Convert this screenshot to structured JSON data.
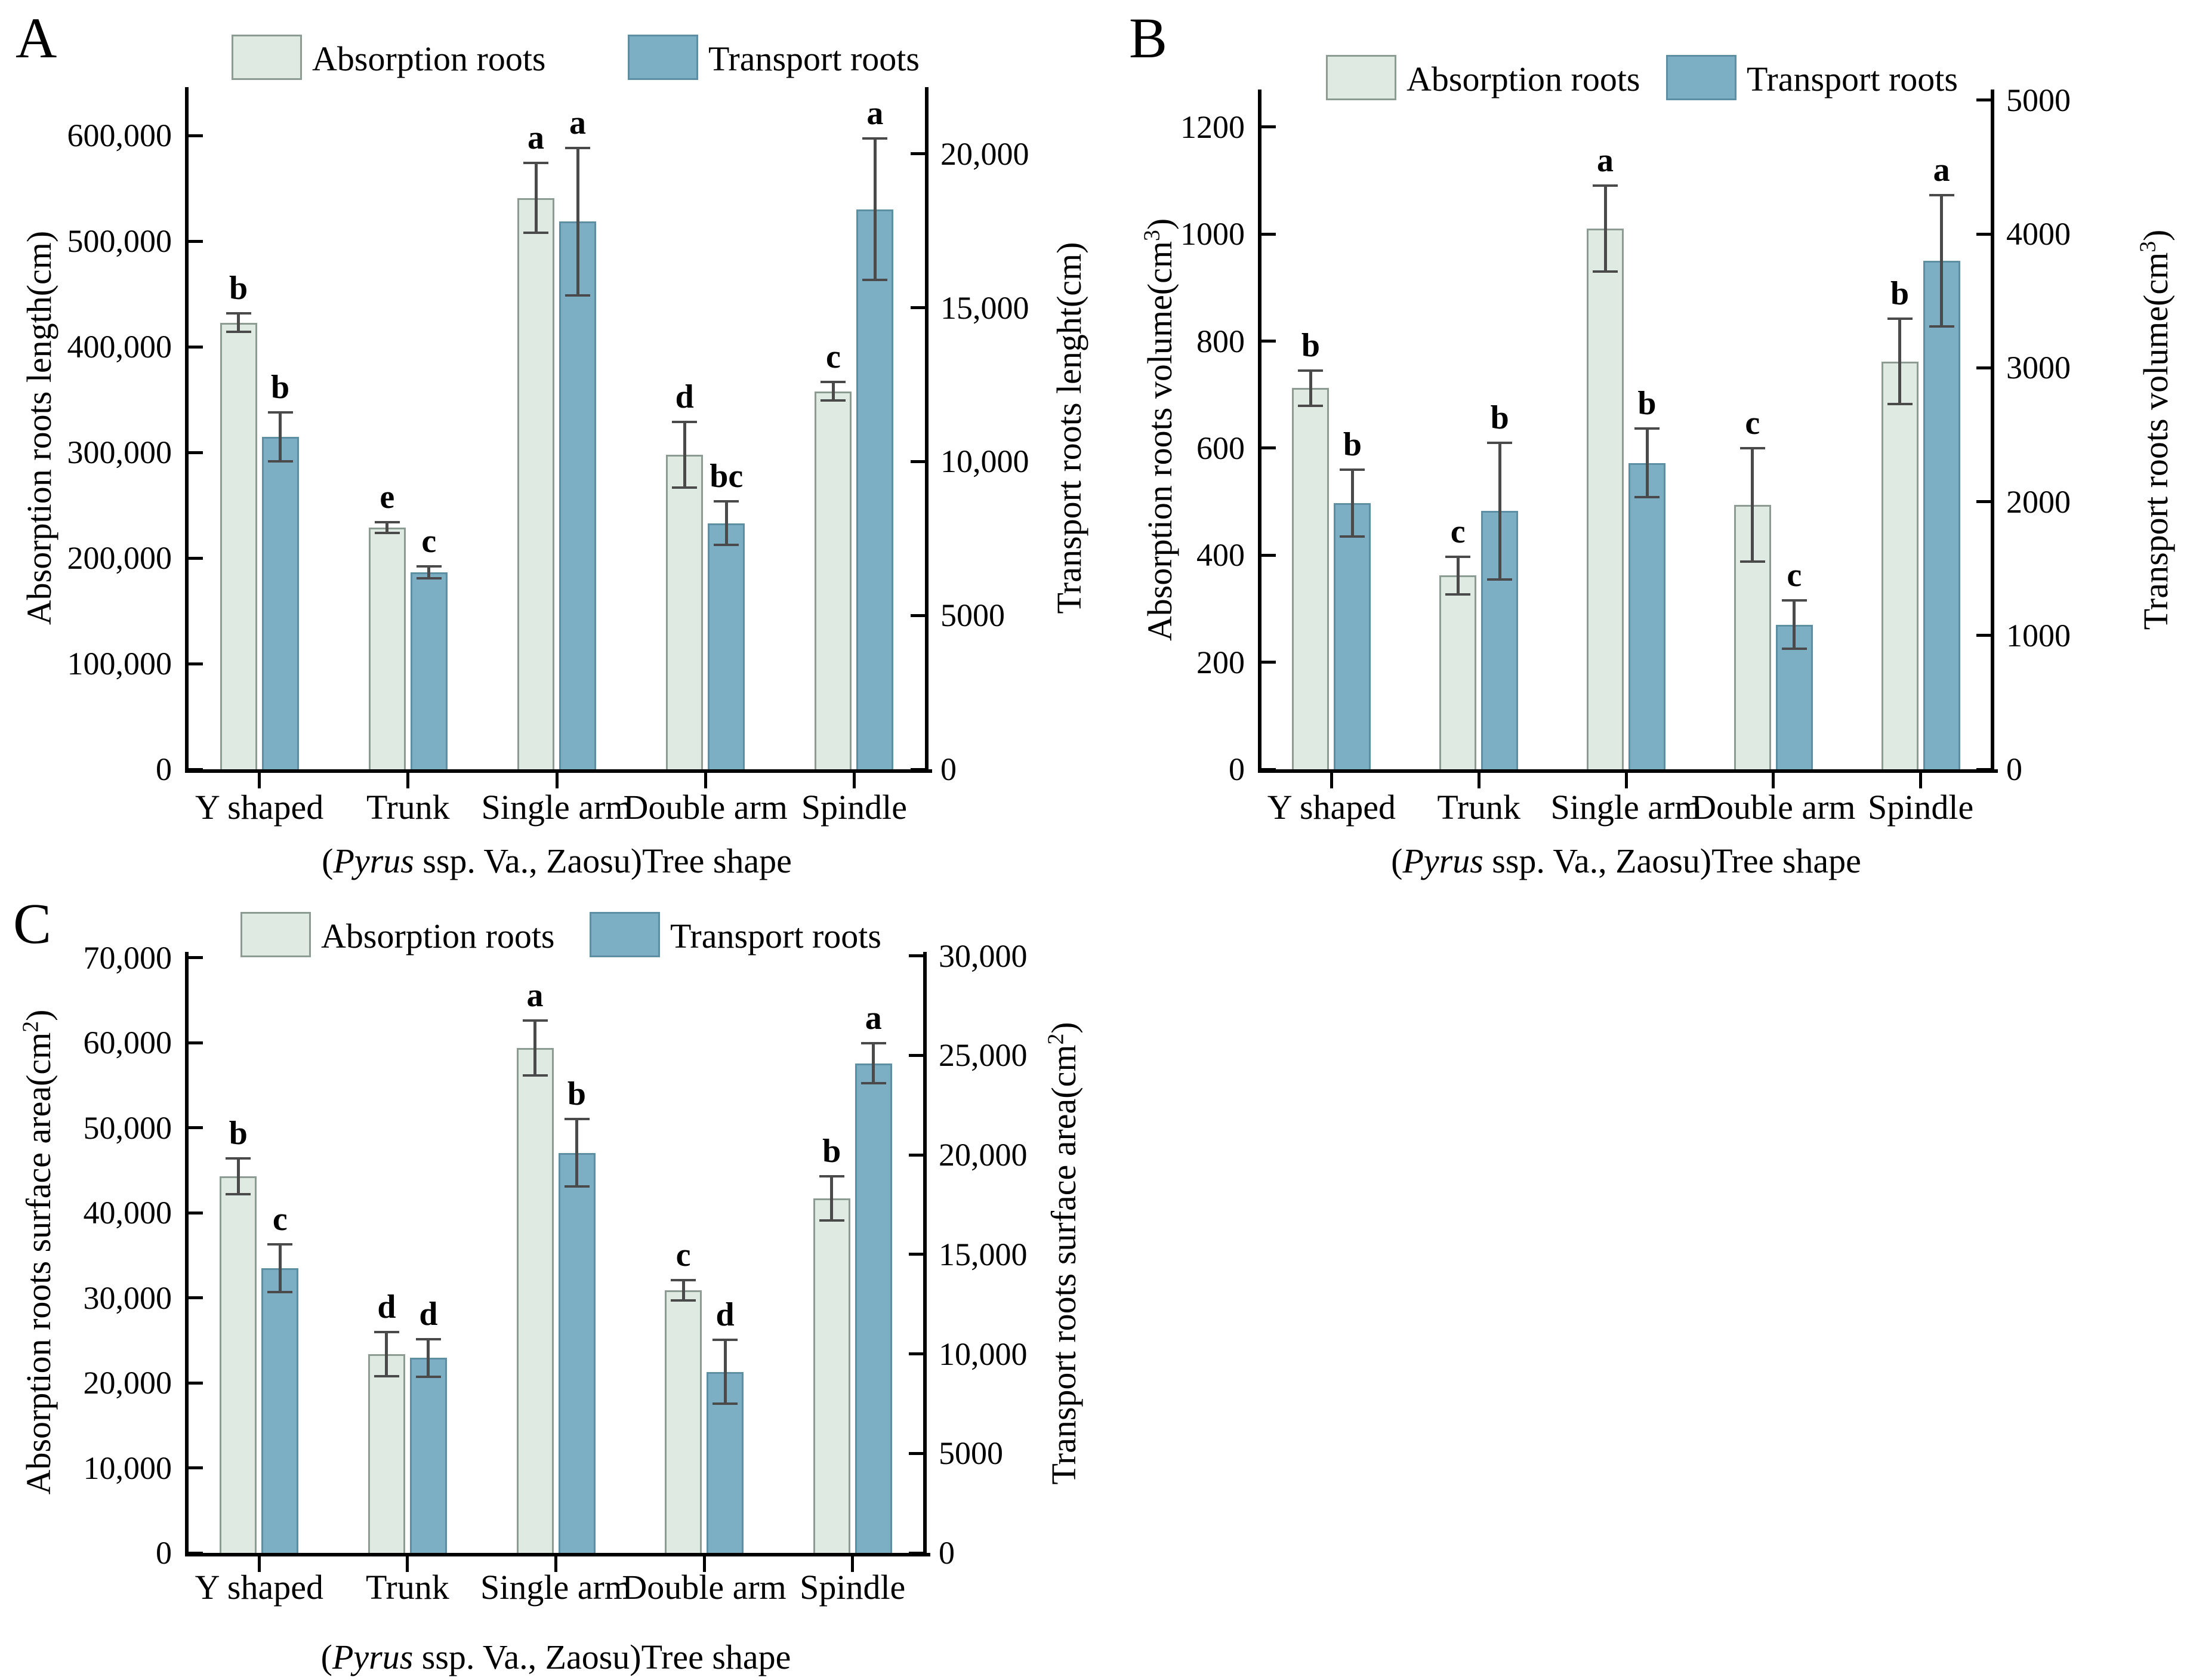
{
  "figure": {
    "legend": {
      "absorption": "Absorption roots",
      "transport": "Transport roots"
    },
    "colors": {
      "absorption_fill": "#dfeae2",
      "absorption_border": "#8c9c92",
      "transport_fill": "#7cafc4",
      "transport_border": "#5d8fa4",
      "error_bar": "#4a4a4a",
      "axis": "#000000",
      "background": "#ffffff"
    }
  },
  "chart_data": [
    {
      "panel": "A",
      "type": "bar",
      "categories": [
        "Y shaped",
        "Trunk",
        "Single arm",
        "Double arm",
        "Spindle"
      ],
      "xlabel": {
        "pre": "(",
        "italic": "Pyrus",
        "post": " ssp. Va., Zaosu)Tree shape"
      },
      "legend_position": "top",
      "grid": false,
      "left_axis": {
        "label": {
          "pre": "Absorption roots length(cm)",
          "sup": "",
          "post": ""
        },
        "tick_values": [
          0,
          100000,
          200000,
          300000,
          400000,
          500000,
          600000
        ],
        "tick_labels": [
          "0",
          "100,000",
          "200,000",
          "300,000",
          "400,000",
          "500,000",
          "600,000"
        ],
        "range_top": 646000
      },
      "right_axis": {
        "label": {
          "pre": "Transport roots lenght(cm)",
          "sup": "",
          "post": ""
        },
        "tick_values": [
          0,
          5000,
          10000,
          15000,
          20000
        ],
        "tick_labels": [
          "0",
          "5000",
          "10,000",
          "15,000",
          "20,000"
        ],
        "range_top": 22170
      },
      "series": [
        {
          "name": "Absorption roots",
          "axis": "left",
          "values": [
            423000,
            229000,
            541000,
            298000,
            358000
          ],
          "errors": [
            9000,
            5000,
            33000,
            31000,
            9000
          ],
          "letters": [
            "b",
            "e",
            "a",
            "d",
            "c"
          ]
        },
        {
          "name": "Transport roots",
          "axis": "right",
          "values": [
            10800,
            6400,
            17800,
            8000,
            18200
          ],
          "errors": [
            800,
            200,
            2400,
            700,
            2300
          ],
          "letters": [
            "b",
            "c",
            "a",
            "bc",
            "a"
          ]
        }
      ]
    },
    {
      "panel": "B",
      "type": "bar",
      "categories": [
        "Y shaped",
        "Trunk",
        "Single arm",
        "Double arm",
        "Spindle"
      ],
      "xlabel": {
        "pre": "(",
        "italic": "Pyrus",
        "post": " ssp. Va., Zaosu)Tree shape"
      },
      "legend_position": "top",
      "grid": false,
      "left_axis": {
        "label": {
          "pre": "Absorption roots volume(cm",
          "sup": "3",
          "post": ")"
        },
        "tick_values": [
          0,
          200,
          400,
          600,
          800,
          1000,
          1200
        ],
        "tick_labels": [
          "0",
          "200",
          "400",
          "600",
          "800",
          "1000",
          "1200"
        ],
        "range_top": 1270
      },
      "right_axis": {
        "label": {
          "pre": "Transport roots volume(cm",
          "sup": "3",
          "post": ")"
        },
        "tick_values": [
          0,
          1000,
          2000,
          3000,
          4000,
          5000
        ],
        "tick_labels": [
          "0",
          "1000",
          "2000",
          "3000",
          "4000",
          "5000"
        ],
        "range_top": 5080
      },
      "series": [
        {
          "name": "Absorption roots",
          "axis": "left",
          "values": [
            712,
            362,
            1010,
            494,
            762
          ],
          "errors": [
            33,
            35,
            80,
            106,
            80
          ],
          "letters": [
            "b",
            "c",
            "a",
            "c",
            "b"
          ]
        },
        {
          "name": "Transport roots",
          "axis": "right",
          "values": [
            1990,
            1930,
            2290,
            1080,
            3800
          ],
          "errors": [
            250,
            510,
            255,
            180,
            490
          ],
          "letters": [
            "b",
            "b",
            "b",
            "c",
            "a"
          ]
        }
      ]
    },
    {
      "panel": "C",
      "type": "bar",
      "categories": [
        "Y shaped",
        "Trunk",
        "Single arm",
        "Double arm",
        "Spindle"
      ],
      "xlabel": {
        "pre": "(",
        "italic": "Pyrus",
        "post": " ssp. Va., Zaosu)Tree shape"
      },
      "legend_position": "top",
      "grid": false,
      "left_axis": {
        "label": {
          "pre": "Absorption roots surface area(cm",
          "sup": "2",
          "post": ")"
        },
        "tick_values": [
          0,
          10000,
          20000,
          30000,
          40000,
          50000,
          60000,
          70000
        ],
        "tick_labels": [
          "0",
          "10,000",
          "20,000",
          "30,000",
          "40,000",
          "50,000",
          "60,000",
          "70,000"
        ],
        "range_top": 70700
      },
      "right_axis": {
        "label": {
          "pre": "Transport roots surface area(cm",
          "sup": "2",
          "post": ")"
        },
        "tick_values": [
          0,
          5000,
          10000,
          15000,
          20000,
          25000,
          30000
        ],
        "tick_labels": [
          "0",
          "5000",
          "10,000",
          "15,000",
          "20,000",
          "25,000",
          "30,000"
        ],
        "range_top": 30200
      },
      "series": [
        {
          "name": "Absorption roots",
          "axis": "left",
          "values": [
            44300,
            23400,
            59400,
            30900,
            41700
          ],
          "errors": [
            2100,
            2600,
            3200,
            1200,
            2600
          ],
          "letters": [
            "b",
            "d",
            "a",
            "c",
            "b"
          ]
        },
        {
          "name": "Transport roots",
          "axis": "right",
          "values": [
            14300,
            9800,
            20100,
            9100,
            24600
          ],
          "errors": [
            1200,
            950,
            1700,
            1600,
            1000
          ],
          "letters": [
            "c",
            "d",
            "b",
            "d",
            "a"
          ]
        }
      ]
    }
  ]
}
